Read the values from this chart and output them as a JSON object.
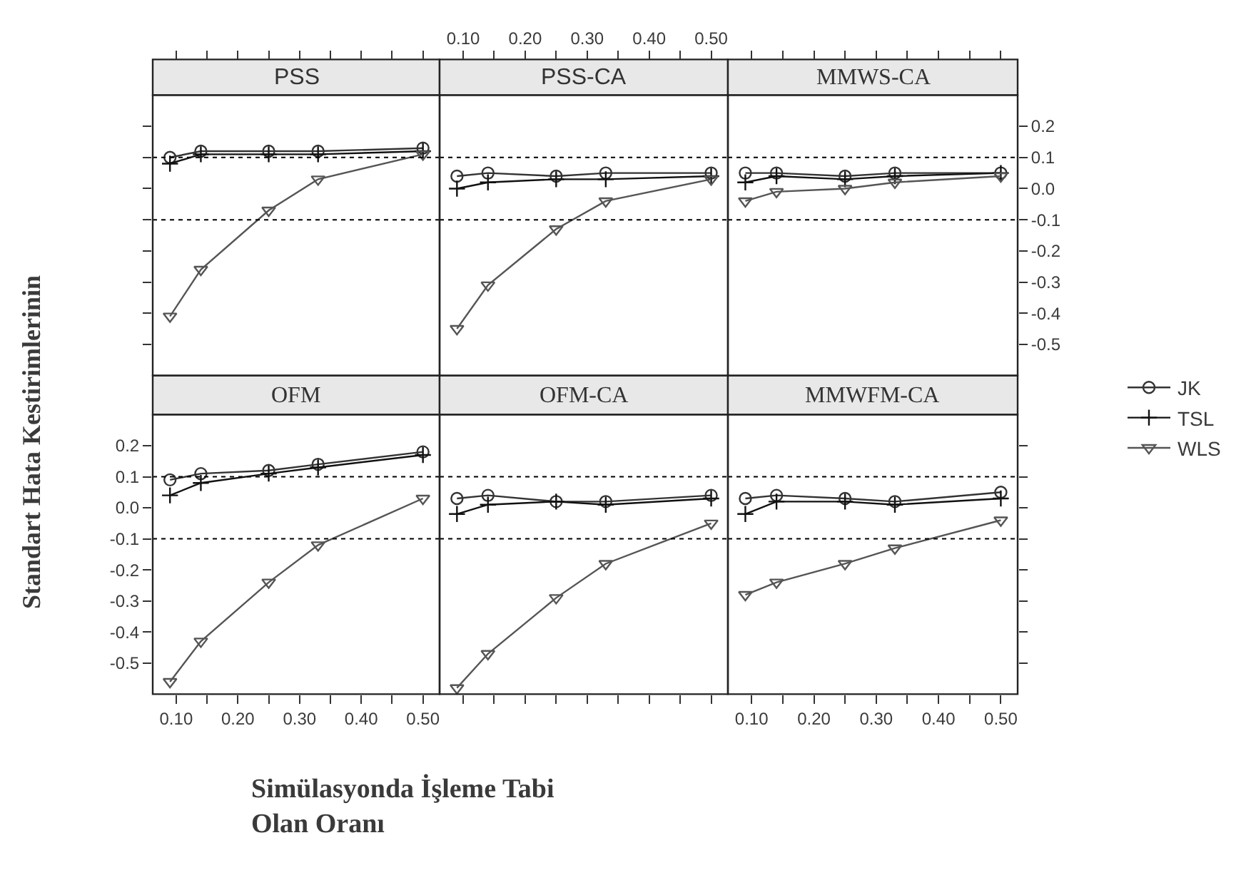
{
  "chart_data": [
    {
      "type": "line",
      "title": "PSS",
      "ylabel": "Standart Hata Kestirimlerinin",
      "legend": "right",
      "tick_labels": false,
      "x": [
        0.09,
        0.14,
        0.25,
        0.33,
        0.5
      ],
      "xlim": [
        0.062,
        0.527
      ],
      "ylim": [
        -0.6,
        0.3
      ],
      "ref_lines": [
        {
          "axis": "y",
          "value": 0.1,
          "line_style": "dotted",
          "color": "#000000"
        },
        {
          "axis": "y",
          "value": -0.1,
          "line_style": "dotted",
          "color": "#000000"
        }
      ],
      "series": [
        {
          "name": "JK",
          "color": "#333333",
          "marker": "circle",
          "values": [
            0.1,
            0.12,
            0.12,
            0.12,
            0.13
          ]
        },
        {
          "name": "TSL",
          "color": "#111111",
          "marker": "cross",
          "values": [
            0.08,
            0.11,
            0.11,
            0.11,
            0.12
          ]
        },
        {
          "name": "WLS",
          "color": "#555555",
          "marker": "triangle",
          "values": [
            -0.41,
            -0.26,
            -0.07,
            0.03,
            0.11
          ]
        }
      ]
    },
    {
      "type": "line",
      "title": "PSS-CA",
      "tick_labels": "x",
      "x": [
        0.09,
        0.14,
        0.25,
        0.33,
        0.5
      ],
      "xlim": [
        0.062,
        0.527
      ],
      "ylim": [
        -0.6,
        0.3
      ],
      "ref_lines": [
        {
          "axis": "y",
          "value": 0.1,
          "line_style": "dotted",
          "color": "#000000"
        },
        {
          "axis": "y",
          "value": -0.1,
          "line_style": "dotted",
          "color": "#000000"
        }
      ],
      "series": [
        {
          "color": "#333333",
          "marker": "circle",
          "values": [
            0.04,
            0.05,
            0.04,
            0.05,
            0.05
          ]
        },
        {
          "color": "#111111",
          "marker": "cross",
          "values": [
            0.0,
            0.02,
            0.03,
            0.03,
            0.04
          ]
        },
        {
          "color": "#555555",
          "marker": "triangle",
          "values": [
            -0.45,
            -0.31,
            -0.13,
            -0.04,
            0.03
          ]
        }
      ]
    },
    {
      "type": "line",
      "title": "MMWS-CA",
      "tick_labels": "y",
      "x": [
        0.09,
        0.14,
        0.25,
        0.33,
        0.5
      ],
      "xlim": [
        0.062,
        0.527
      ],
      "ylim": [
        -0.6,
        0.3
      ],
      "yticks": [
        0.2,
        0.1,
        {
          "value": 0,
          "label": "0.0"
        },
        -0.1,
        -0.2,
        -0.3,
        -0.4,
        -0.5
      ],
      "ref_lines": [
        {
          "axis": "y",
          "value": 0.1,
          "line_style": "dotted",
          "color": "#000000"
        },
        {
          "axis": "y",
          "value": -0.1,
          "line_style": "dotted",
          "color": "#000000"
        }
      ],
      "series": [
        {
          "color": "#333333",
          "marker": "circle",
          "values": [
            0.05,
            0.05,
            0.04,
            0.05,
            0.05
          ]
        },
        {
          "color": "#111111",
          "marker": "cross",
          "values": [
            0.02,
            0.04,
            0.03,
            0.04,
            0.05
          ]
        },
        {
          "color": "#555555",
          "marker": "triangle",
          "values": [
            -0.04,
            -0.01,
            0.0,
            0.02,
            0.04
          ]
        }
      ]
    },
    {
      "type": "line",
      "title": "OFM",
      "xlabel": "Simülasyonda İşleme Tabi\nOlan Oranı",
      "x": [
        0.09,
        0.14,
        0.25,
        0.33,
        0.5
      ],
      "xlim": [
        0.062,
        0.527
      ],
      "ylim": [
        -0.6,
        0.3
      ],
      "xticks": [
        {
          "value": 0.1,
          "label": "0.10"
        },
        {
          "value": 0.15,
          "label": null
        },
        {
          "value": 0.2,
          "label": "0.20"
        },
        {
          "value": 0.25,
          "label": null
        },
        {
          "value": 0.3,
          "label": "0.30"
        },
        {
          "value": 0.35,
          "label": null
        },
        {
          "value": 0.4,
          "label": "0.40"
        },
        {
          "value": 0.45,
          "label": null
        },
        {
          "value": 0.5,
          "label": "0.50"
        }
      ],
      "yticks": [
        0.2,
        0.1,
        {
          "value": 0,
          "label": "0.0"
        },
        -0.1,
        -0.2,
        -0.3,
        -0.4,
        -0.5
      ],
      "ref_lines": [
        {
          "axis": "y",
          "value": 0.1,
          "line_style": "dotted",
          "color": "#000000"
        },
        {
          "axis": "y",
          "value": -0.1,
          "line_style": "dotted",
          "color": "#000000"
        }
      ],
      "series": [
        {
          "color": "#333333",
          "marker": "circle",
          "values": [
            0.09,
            0.11,
            0.12,
            0.14,
            0.18
          ]
        },
        {
          "color": "#111111",
          "marker": "cross",
          "values": [
            0.04,
            0.08,
            0.11,
            0.13,
            0.17
          ]
        },
        {
          "color": "#555555",
          "marker": "triangle",
          "values": [
            -0.56,
            -0.43,
            -0.24,
            -0.12,
            0.03
          ]
        }
      ]
    },
    {
      "type": "line",
      "title": "OFM-CA",
      "tick_labels": false,
      "x": [
        0.09,
        0.14,
        0.25,
        0.33,
        0.5
      ],
      "xlim": [
        0.062,
        0.527
      ],
      "ylim": [
        -0.6,
        0.3
      ],
      "xticks": [
        {
          "value": 0.1,
          "label": "0.10"
        },
        {
          "value": 0.15,
          "label": null
        },
        {
          "value": 0.2,
          "label": "0.20"
        },
        {
          "value": 0.25,
          "label": null
        },
        {
          "value": 0.3,
          "label": "0.30"
        },
        {
          "value": 0.35,
          "label": null
        },
        {
          "value": 0.4,
          "label": "0.40"
        },
        {
          "value": 0.45,
          "label": null
        },
        {
          "value": 0.5,
          "label": "0.50"
        }
      ],
      "ref_lines": [
        {
          "axis": "y",
          "value": 0.1,
          "line_style": "dotted",
          "color": "#000000"
        },
        {
          "axis": "y",
          "value": -0.1,
          "line_style": "dotted",
          "color": "#000000"
        }
      ],
      "series": [
        {
          "color": "#333333",
          "marker": "circle",
          "values": [
            0.03,
            0.04,
            0.02,
            0.02,
            0.04
          ]
        },
        {
          "color": "#111111",
          "marker": "cross",
          "values": [
            -0.02,
            0.01,
            0.02,
            0.01,
            0.03
          ]
        },
        {
          "color": "#555555",
          "marker": "triangle",
          "values": [
            -0.58,
            -0.47,
            -0.29,
            -0.18,
            -0.05
          ]
        }
      ]
    },
    {
      "type": "line",
      "title": "MMWFM-CA",
      "tick_labels": "x",
      "x": [
        0.09,
        0.14,
        0.25,
        0.33,
        0.5
      ],
      "xlim": [
        0.062,
        0.527
      ],
      "ylim": [
        -0.6,
        0.3
      ],
      "xticks": [
        {
          "value": 0.1,
          "label": "0.10"
        },
        {
          "value": 0.15,
          "label": null
        },
        {
          "value": 0.2,
          "label": "0.20"
        },
        {
          "value": 0.25,
          "label": null
        },
        {
          "value": 0.3,
          "label": "0.30"
        },
        {
          "value": 0.35,
          "label": null
        },
        {
          "value": 0.4,
          "label": "0.40"
        },
        {
          "value": 0.45,
          "label": null
        },
        {
          "value": 0.5,
          "label": "0.50"
        }
      ],
      "ref_lines": [
        {
          "axis": "y",
          "value": 0.1,
          "line_style": "dotted",
          "color": "#000000"
        },
        {
          "axis": "y",
          "value": -0.1,
          "line_style": "dotted",
          "color": "#000000"
        }
      ],
      "series": [
        {
          "color": "#333333",
          "marker": "circle",
          "values": [
            0.03,
            0.04,
            0.03,
            0.02,
            0.05
          ]
        },
        {
          "color": "#111111",
          "marker": "cross",
          "values": [
            -0.02,
            0.02,
            0.02,
            0.01,
            0.03
          ]
        },
        {
          "color": "#555555",
          "marker": "triangle",
          "values": [
            -0.28,
            -0.24,
            -0.18,
            -0.13,
            -0.04
          ]
        }
      ]
    }
  ]
}
